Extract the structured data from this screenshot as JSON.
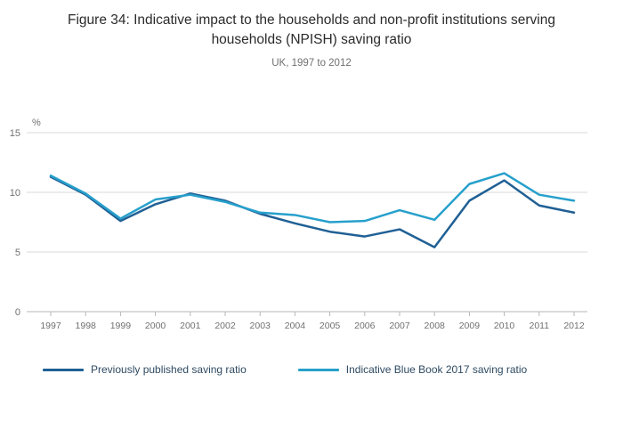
{
  "title": "Figure 34: Indicative impact to the households and non-profit institutions serving households (NPISH) saving ratio",
  "subtitle": "UK, 1997 to 2012",
  "chart_data": {
    "type": "line",
    "x": [
      1997,
      1998,
      1999,
      2000,
      2001,
      2002,
      2003,
      2004,
      2005,
      2006,
      2007,
      2008,
      2009,
      2010,
      2011,
      2012
    ],
    "series": [
      {
        "name": "Previously published saving ratio",
        "color": "#206095",
        "values": [
          11.3,
          9.8,
          7.6,
          9.0,
          9.9,
          9.3,
          8.2,
          7.4,
          6.7,
          6.3,
          6.9,
          5.4,
          9.3,
          11.0,
          8.9,
          8.3
        ]
      },
      {
        "name": "Indicative Blue Book 2017 saving ratio",
        "color": "#27a0cc",
        "values": [
          11.4,
          9.9,
          7.8,
          9.4,
          9.8,
          9.2,
          8.3,
          8.1,
          7.5,
          7.6,
          8.5,
          7.7,
          10.7,
          11.6,
          9.8,
          9.3
        ]
      }
    ],
    "ylabel": "%",
    "yticks": [
      0,
      5,
      10,
      15
    ],
    "ylim": [
      0,
      15
    ],
    "grid": true,
    "legend_position": "bottom",
    "colors": {
      "grid": "#d9d9d9",
      "axis": "#b7b7b7",
      "tick_text": "#707071"
    }
  }
}
